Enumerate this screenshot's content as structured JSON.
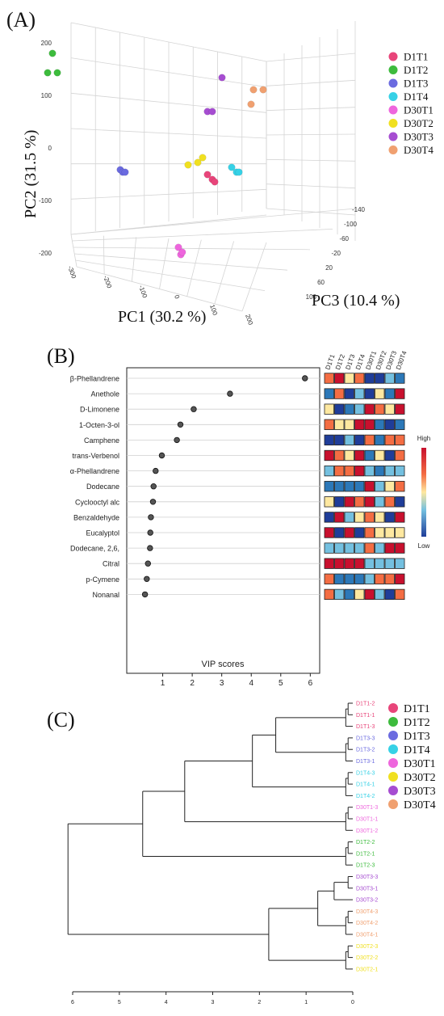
{
  "colors": {
    "D1T1": "#e8457a",
    "D1T2": "#3dbb3d",
    "D1T3": "#6b6be0",
    "D1T4": "#36d1e6",
    "D30T1": "#ee66dd",
    "D30T2": "#f0e020",
    "D30T3": "#a64dd1",
    "D30T4": "#f0a070"
  },
  "chart_data": [
    {
      "type": "scatter",
      "panel_label": "(A)",
      "title": "",
      "xlabel": "PC1 (30.2 %)",
      "ylabel": "PC2 (31.5 %)",
      "zlabel": "PC3 (10.4 %)",
      "pc1_ticks": [
        "-300",
        "-200",
        "-100",
        "0",
        "100",
        "200"
      ],
      "pc2_ticks": [
        "200",
        "100",
        "0",
        "-100",
        "-200"
      ],
      "pc3_ticks": [
        "-140",
        "-100",
        "-60",
        "-20",
        "20",
        "60",
        "100"
      ],
      "legend": [
        "D1T1",
        "D1T2",
        "D1T3",
        "D1T4",
        "D30T1",
        "D30T2",
        "D30T3",
        "D30T4"
      ],
      "legend_position": "right",
      "groups": [
        {
          "name": "D1T1",
          "points": [
            {
              "pc1": 80,
              "pc2": -50
            },
            {
              "pc1": 90,
              "pc2": -60
            },
            {
              "pc1": 95,
              "pc2": -65
            }
          ]
        },
        {
          "name": "D1T2",
          "points": [
            {
              "pc1": -240,
              "pc2": 200
            },
            {
              "pc1": -250,
              "pc2": 160
            },
            {
              "pc1": -230,
              "pc2": 160
            }
          ]
        },
        {
          "name": "D1T3",
          "points": [
            {
              "pc1": -100,
              "pc2": -40
            },
            {
              "pc1": -95,
              "pc2": -45
            },
            {
              "pc1": -90,
              "pc2": -45
            }
          ]
        },
        {
          "name": "D1T4",
          "points": [
            {
              "pc1": 130,
              "pc2": -35
            },
            {
              "pc1": 140,
              "pc2": -45
            },
            {
              "pc1": 145,
              "pc2": -45
            }
          ]
        },
        {
          "name": "D30T1",
          "points": [
            {
              "pc1": 20,
              "pc2": -200
            },
            {
              "pc1": 25,
              "pc2": -215
            },
            {
              "pc1": 28,
              "pc2": -210
            }
          ]
        },
        {
          "name": "D30T2",
          "points": [
            {
              "pc1": 40,
              "pc2": -30
            },
            {
              "pc1": 60,
              "pc2": -25
            },
            {
              "pc1": 70,
              "pc2": -15
            }
          ]
        },
        {
          "name": "D30T3",
          "points": [
            {
              "pc1": 80,
              "pc2": 80
            },
            {
              "pc1": 90,
              "pc2": 80
            },
            {
              "pc1": 110,
              "pc2": 150
            }
          ]
        },
        {
          "name": "D30T4",
          "points": [
            {
              "pc1": 170,
              "pc2": 95
            },
            {
              "pc1": 175,
              "pc2": 125
            },
            {
              "pc1": 195,
              "pc2": 125
            }
          ]
        }
      ]
    },
    {
      "type": "scatter",
      "panel_label": "(B)",
      "title": "",
      "xlabel": "VIP scores",
      "ylabel": "",
      "xlim": [
        0,
        6.1
      ],
      "xticks": [
        1,
        2,
        3,
        4,
        5,
        6
      ],
      "compounds": [
        "β-Phellandrene",
        "Anethole",
        "D-Limonene",
        "1-Octen-3-ol",
        "Camphene",
        "trans-Verbenol",
        "α-Phellandrene",
        "Dodecane",
        "Cyclooctyl alc",
        "Benzaldehyde",
        "Eucalyptol",
        "Dodecane, 2,6,",
        "Citral",
        "p-Cymene",
        "Nonanal"
      ],
      "vip": [
        5.82,
        3.28,
        2.05,
        1.6,
        1.48,
        0.97,
        0.76,
        0.69,
        0.67,
        0.6,
        0.58,
        0.57,
        0.5,
        0.46,
        0.4
      ],
      "heatmap_columns": [
        "D1T1",
        "D1T2",
        "D1T3",
        "D1T4",
        "D30T1",
        "D30T2",
        "D30T3",
        "D30T4"
      ],
      "heatmap_scale": [
        "High",
        "Low"
      ],
      "heatmap_levels": [
        [
          5,
          6,
          4,
          5,
          1,
          1,
          3,
          2
        ],
        [
          2,
          5,
          1,
          3,
          1,
          4,
          2,
          6
        ],
        [
          4,
          1,
          2,
          3,
          6,
          5,
          4,
          6
        ],
        [
          5,
          4,
          4,
          6,
          6,
          2,
          1,
          2
        ],
        [
          1,
          1,
          3,
          1,
          5,
          2,
          5,
          5
        ],
        [
          6,
          5,
          4,
          6,
          2,
          4,
          1,
          5
        ],
        [
          3,
          5,
          5,
          6,
          3,
          2,
          3,
          3
        ],
        [
          2,
          2,
          2,
          2,
          6,
          3,
          4,
          5
        ],
        [
          4,
          1,
          6,
          5,
          6,
          3,
          5,
          1
        ],
        [
          1,
          6,
          3,
          4,
          5,
          4,
          1,
          6
        ],
        [
          6,
          1,
          6,
          1,
          5,
          4,
          4,
          4
        ],
        [
          3,
          3,
          3,
          3,
          5,
          3,
          6,
          6
        ],
        [
          6,
          6,
          6,
          6,
          3,
          3,
          3,
          3
        ],
        [
          5,
          2,
          2,
          2,
          3,
          5,
          5,
          6
        ],
        [
          5,
          3,
          2,
          4,
          6,
          3,
          1,
          5
        ]
      ]
    },
    {
      "type": "dendrogram",
      "panel_label": "(C)",
      "title": "",
      "xticks": [
        "6",
        "5",
        "4",
        "3",
        "2",
        "1",
        "0"
      ],
      "legend": [
        "D1T1",
        "D1T2",
        "D1T3",
        "D1T4",
        "D30T1",
        "D30T2",
        "D30T3",
        "D30T4"
      ],
      "leaves": [
        {
          "label": "D1T1-2",
          "group": "D1T1"
        },
        {
          "label": "D1T1-1",
          "group": "D1T1"
        },
        {
          "label": "D1T1-3",
          "group": "D1T1"
        },
        {
          "label": "D1T3-3",
          "group": "D1T3"
        },
        {
          "label": "D1T3-2",
          "group": "D1T3"
        },
        {
          "label": "D1T3-1",
          "group": "D1T3"
        },
        {
          "label": "D1T4-3",
          "group": "D1T4"
        },
        {
          "label": "D1T4-1",
          "group": "D1T4"
        },
        {
          "label": "D1T4-2",
          "group": "D1T4"
        },
        {
          "label": "D30T1-3",
          "group": "D30T1"
        },
        {
          "label": "D30T1-1",
          "group": "D30T1"
        },
        {
          "label": "D30T1-2",
          "group": "D30T1"
        },
        {
          "label": "D1T2-2",
          "group": "D1T2"
        },
        {
          "label": "D1T2-1",
          "group": "D1T2"
        },
        {
          "label": "D1T2-3",
          "group": "D1T2"
        },
        {
          "label": "D30T3-3",
          "group": "D30T3"
        },
        {
          "label": "D30T3-1",
          "group": "D30T3"
        },
        {
          "label": "D30T3-2",
          "group": "D30T3"
        },
        {
          "label": "D30T4-3",
          "group": "D30T4"
        },
        {
          "label": "D30T4-2",
          "group": "D30T4"
        },
        {
          "label": "D30T4-1",
          "group": "D30T4"
        },
        {
          "label": "D30T2-3",
          "group": "D30T2"
        },
        {
          "label": "D30T2-2",
          "group": "D30T2"
        },
        {
          "label": "D30T2-1",
          "group": "D30T2"
        }
      ],
      "merges": [
        {
          "a": "L0",
          "b": "L1",
          "h": 0.1
        },
        {
          "a": "N0",
          "b": "L2",
          "h": 0.15
        },
        {
          "a": "L3",
          "b": "L4",
          "h": 0.1
        },
        {
          "a": "N2",
          "b": "L5",
          "h": 0.15
        },
        {
          "a": "N1",
          "b": "N3",
          "h": 1.65
        },
        {
          "a": "L6",
          "b": "L7",
          "h": 0.1
        },
        {
          "a": "N5",
          "b": "L8",
          "h": 0.15
        },
        {
          "a": "N4",
          "b": "N6",
          "h": 2.15
        },
        {
          "a": "L9",
          "b": "L10",
          "h": 0.1
        },
        {
          "a": "N8",
          "b": "L11",
          "h": 0.15
        },
        {
          "a": "N7",
          "b": "N9",
          "h": 3.6
        },
        {
          "a": "L12",
          "b": "L13",
          "h": 0.1
        },
        {
          "a": "N11",
          "b": "L14",
          "h": 0.15
        },
        {
          "a": "N10",
          "b": "N12",
          "h": 4.5
        },
        {
          "a": "L15",
          "b": "L16",
          "h": 0.1
        },
        {
          "a": "N14",
          "b": "L17",
          "h": 0.4
        },
        {
          "a": "L18",
          "b": "L19",
          "h": 0.1
        },
        {
          "a": "N16",
          "b": "L20",
          "h": 0.15
        },
        {
          "a": "N15",
          "b": "N17",
          "h": 0.75
        },
        {
          "a": "L21",
          "b": "L22",
          "h": 0.1
        },
        {
          "a": "N19",
          "b": "L23",
          "h": 0.15
        },
        {
          "a": "N18",
          "b": "N20",
          "h": 1.8
        },
        {
          "a": "N13",
          "b": "N21",
          "h": 6.1
        }
      ]
    }
  ]
}
